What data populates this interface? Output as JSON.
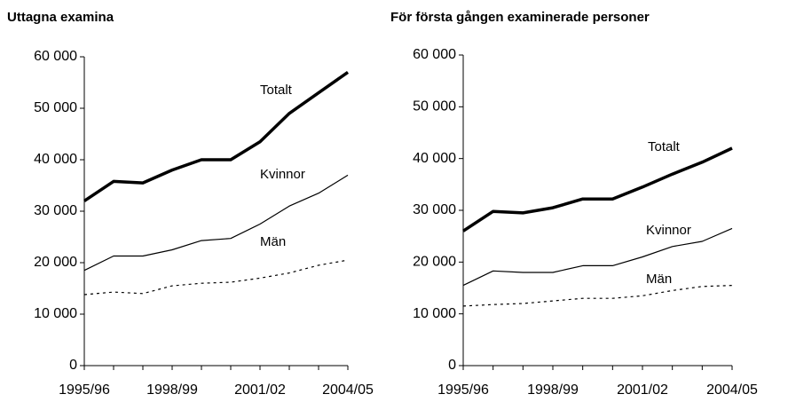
{
  "chart_data": [
    {
      "type": "line",
      "title": "Uttagna examina",
      "categories": [
        "1995/96",
        null,
        null,
        "1998/99",
        null,
        null,
        "2001/02",
        null,
        null,
        "2004/05"
      ],
      "series": [
        {
          "name": "Totalt",
          "color": "#000000",
          "linestyle": "solid",
          "linewidth": 3.5,
          "values": [
            32000,
            35800,
            35500,
            38000,
            40000,
            40000,
            43500,
            49000,
            53000,
            57000
          ]
        },
        {
          "name": "Kvinnor",
          "color": "#000000",
          "linestyle": "solid",
          "linewidth": 1.2,
          "values": [
            18500,
            21300,
            21300,
            22500,
            24300,
            24700,
            27500,
            31000,
            33500,
            37000
          ]
        },
        {
          "name": "Män",
          "color": "#000000",
          "linestyle": "dashed",
          "linewidth": 1.2,
          "values": [
            13800,
            14300,
            14000,
            15500,
            16000,
            16200,
            17000,
            18000,
            19500,
            20500
          ]
        }
      ],
      "ylim": [
        0,
        60000
      ],
      "yticks": [
        0,
        {
          "value": 10000,
          "label": "10 000"
        },
        {
          "value": 20000,
          "label": "20 000"
        },
        {
          "value": 30000,
          "label": "30 000"
        },
        {
          "value": 40000,
          "label": "40 000"
        },
        {
          "value": 50000,
          "label": "50 000"
        },
        {
          "value": 60000,
          "label": "60 000"
        }
      ],
      "grid": false
    },
    {
      "type": "line",
      "title": "För första gången examinerade personer",
      "categories": [
        "1995/96",
        null,
        null,
        "1998/99",
        null,
        null,
        "2001/02",
        null,
        null,
        "2004/05"
      ],
      "series": [
        {
          "name": "Totalt",
          "color": "#000000",
          "linestyle": "solid",
          "linewidth": 3.5,
          "values": [
            26000,
            29800,
            29500,
            30500,
            32200,
            32200,
            34500,
            37000,
            39300,
            42000
          ]
        },
        {
          "name": "Kvinnor",
          "color": "#000000",
          "linestyle": "solid",
          "linewidth": 1.2,
          "values": [
            15500,
            18300,
            18000,
            18000,
            19300,
            19300,
            21000,
            23000,
            24000,
            26500
          ]
        },
        {
          "name": "Män",
          "color": "#000000",
          "linestyle": "dashed",
          "linewidth": 1.2,
          "values": [
            11500,
            11800,
            12000,
            12500,
            13000,
            13000,
            13500,
            14500,
            15300,
            15500
          ]
        }
      ],
      "ylim": [
        0,
        60000
      ],
      "yticks": [
        0,
        {
          "value": 10000,
          "label": "10 000"
        },
        {
          "value": 20000,
          "label": "20 000"
        },
        {
          "value": 30000,
          "label": "30 000"
        },
        {
          "value": 40000,
          "label": "40 000"
        },
        {
          "value": 50000,
          "label": "50 000"
        },
        {
          "value": 60000,
          "label": "60 000"
        }
      ],
      "grid": false
    }
  ]
}
